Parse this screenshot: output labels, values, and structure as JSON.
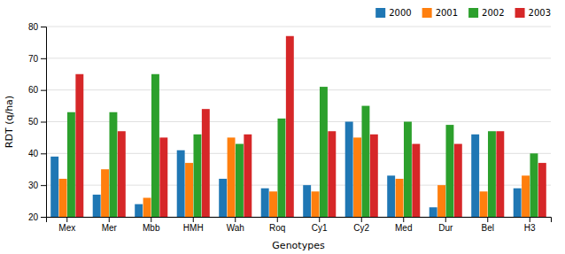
{
  "chart_data": {
    "type": "bar",
    "xlabel": "Genotypes",
    "ylabel": "RDT (q/ha)",
    "categories": [
      "Mex",
      "Mer",
      "Mbb",
      "HMH",
      "Wah",
      "Roq",
      "Cy1",
      "Cy2",
      "Med",
      "Dur",
      "Bel",
      "H3"
    ],
    "series": [
      {
        "name": "2000",
        "values": [
          39,
          27,
          24,
          41,
          32,
          29,
          30,
          50,
          33,
          23,
          46,
          29
        ]
      },
      {
        "name": "2001",
        "values": [
          32,
          35,
          26,
          37,
          45,
          28,
          28,
          45,
          32,
          30,
          28,
          33
        ]
      },
      {
        "name": "2002",
        "values": [
          53,
          53,
          65,
          46,
          43,
          51,
          61,
          55,
          50,
          49,
          47,
          40
        ]
      },
      {
        "name": "2003",
        "values": [
          65,
          47,
          45,
          54,
          46,
          77,
          47,
          46,
          43,
          43,
          47,
          37
        ]
      }
    ],
    "ylim": [
      20,
      80
    ],
    "yticks": [
      20,
      30,
      40,
      50,
      60,
      70,
      80
    ],
    "grid": true,
    "legend": "upper right"
  }
}
